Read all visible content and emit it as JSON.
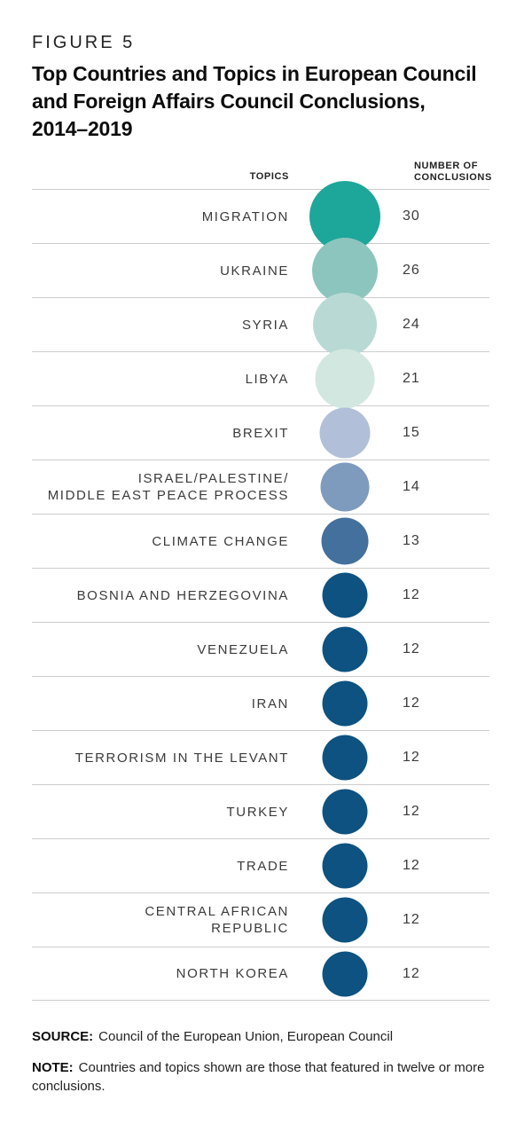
{
  "figure": {
    "label": "FIGURE 5",
    "title_lines": [
      "Top Countries and Topics in European Council",
      "and Foreign Affairs Council Conclusions,",
      "2014–2019"
    ]
  },
  "table_headers": {
    "topics": "TOPICS",
    "value_line1": "NUMBER OF",
    "value_line2": "CONCLUSIONS"
  },
  "rows": [
    {
      "topic_lines": [
        "MIGRATION"
      ],
      "value": 30,
      "color": "#1DA69A"
    },
    {
      "topic_lines": [
        "UKRAINE"
      ],
      "value": 26,
      "color": "#8CC5BD"
    },
    {
      "topic_lines": [
        "SYRIA"
      ],
      "value": 24,
      "color": "#B9DAD4"
    },
    {
      "topic_lines": [
        "LIBYA"
      ],
      "value": 21,
      "color": "#D2E7E0"
    },
    {
      "topic_lines": [
        "BREXIT"
      ],
      "value": 15,
      "color": "#B1C0D8"
    },
    {
      "topic_lines": [
        "ISRAEL/PALESTINE/",
        "MIDDLE EAST PEACE PROCESS"
      ],
      "value": 14,
      "color": "#7E9ABD"
    },
    {
      "topic_lines": [
        "CLIMATE CHANGE"
      ],
      "value": 13,
      "color": "#44709D"
    },
    {
      "topic_lines": [
        "BOSNIA AND HERZEGOVINA"
      ],
      "value": 12,
      "color": "#0D5280"
    },
    {
      "topic_lines": [
        "VENEZUELA"
      ],
      "value": 12,
      "color": "#0D5280"
    },
    {
      "topic_lines": [
        "IRAN"
      ],
      "value": 12,
      "color": "#0D5280"
    },
    {
      "topic_lines": [
        "TERRORISM IN THE LEVANT"
      ],
      "value": 12,
      "color": "#0D5280"
    },
    {
      "topic_lines": [
        "TURKEY"
      ],
      "value": 12,
      "color": "#0D5280"
    },
    {
      "topic_lines": [
        "TRADE"
      ],
      "value": 12,
      "color": "#0D5280"
    },
    {
      "topic_lines": [
        "CENTRAL AFRICAN",
        "REPUBLIC"
      ],
      "value": 12,
      "color": "#0D5280"
    },
    {
      "topic_lines": [
        "NORTH KOREA"
      ],
      "value": 12,
      "color": "#0D5280"
    }
  ],
  "chart_data": {
    "type": "bubble",
    "title": "Top Countries and Topics in European Council and Foreign Affairs Council Conclusions, 2014–2019",
    "xlabel": "TOPICS",
    "ylabel": "NUMBER OF CONCLUSIONS",
    "categories": [
      "MIGRATION",
      "UKRAINE",
      "SYRIA",
      "LIBYA",
      "BREXIT",
      "ISRAEL/PALESTINE/MIDDLE EAST PEACE PROCESS",
      "CLIMATE CHANGE",
      "BOSNIA AND HERZEGOVINA",
      "VENEZUELA",
      "IRAN",
      "TERRORISM IN THE LEVANT",
      "TURKEY",
      "TRADE",
      "CENTRAL AFRICAN REPUBLIC",
      "NORTH KOREA"
    ],
    "values": [
      30,
      26,
      24,
      21,
      15,
      14,
      13,
      12,
      12,
      12,
      12,
      12,
      12,
      12,
      12
    ],
    "bubble_colors": [
      "#1DA69A",
      "#8CC5BD",
      "#B9DAD4",
      "#D2E7E0",
      "#B1C0D8",
      "#7E9ABD",
      "#44709D",
      "#0D5280",
      "#0D5280",
      "#0D5280",
      "#0D5280",
      "#0D5280",
      "#0D5280",
      "#0D5280",
      "#0D5280"
    ],
    "encoding": "bubble area proportional to value",
    "legend": false,
    "grid": "horizontal row dividers"
  },
  "footer": {
    "source_label": "SOURCE:",
    "source_text": "Council of the European Union, European Council",
    "note_label": "NOTE:",
    "note_text": "Countries and topics shown are those that featured in twelve or more conclusions."
  }
}
